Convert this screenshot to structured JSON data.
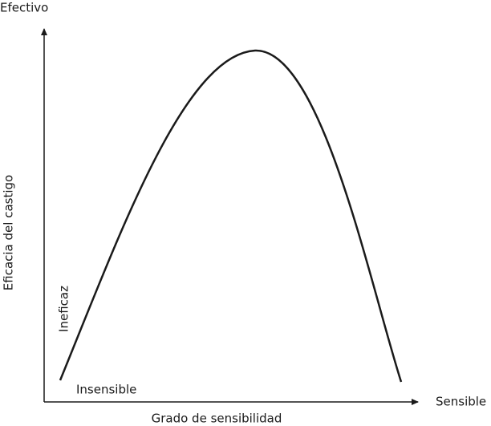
{
  "diagram": {
    "y_axis": {
      "top_label": "Efectivo",
      "title": "Eficacia del castigo",
      "bottom_label": "Ineficaz"
    },
    "x_axis": {
      "left_label": "Insensible",
      "right_label": "Sensible",
      "title": "Grado de sensibilidad"
    }
  }
}
